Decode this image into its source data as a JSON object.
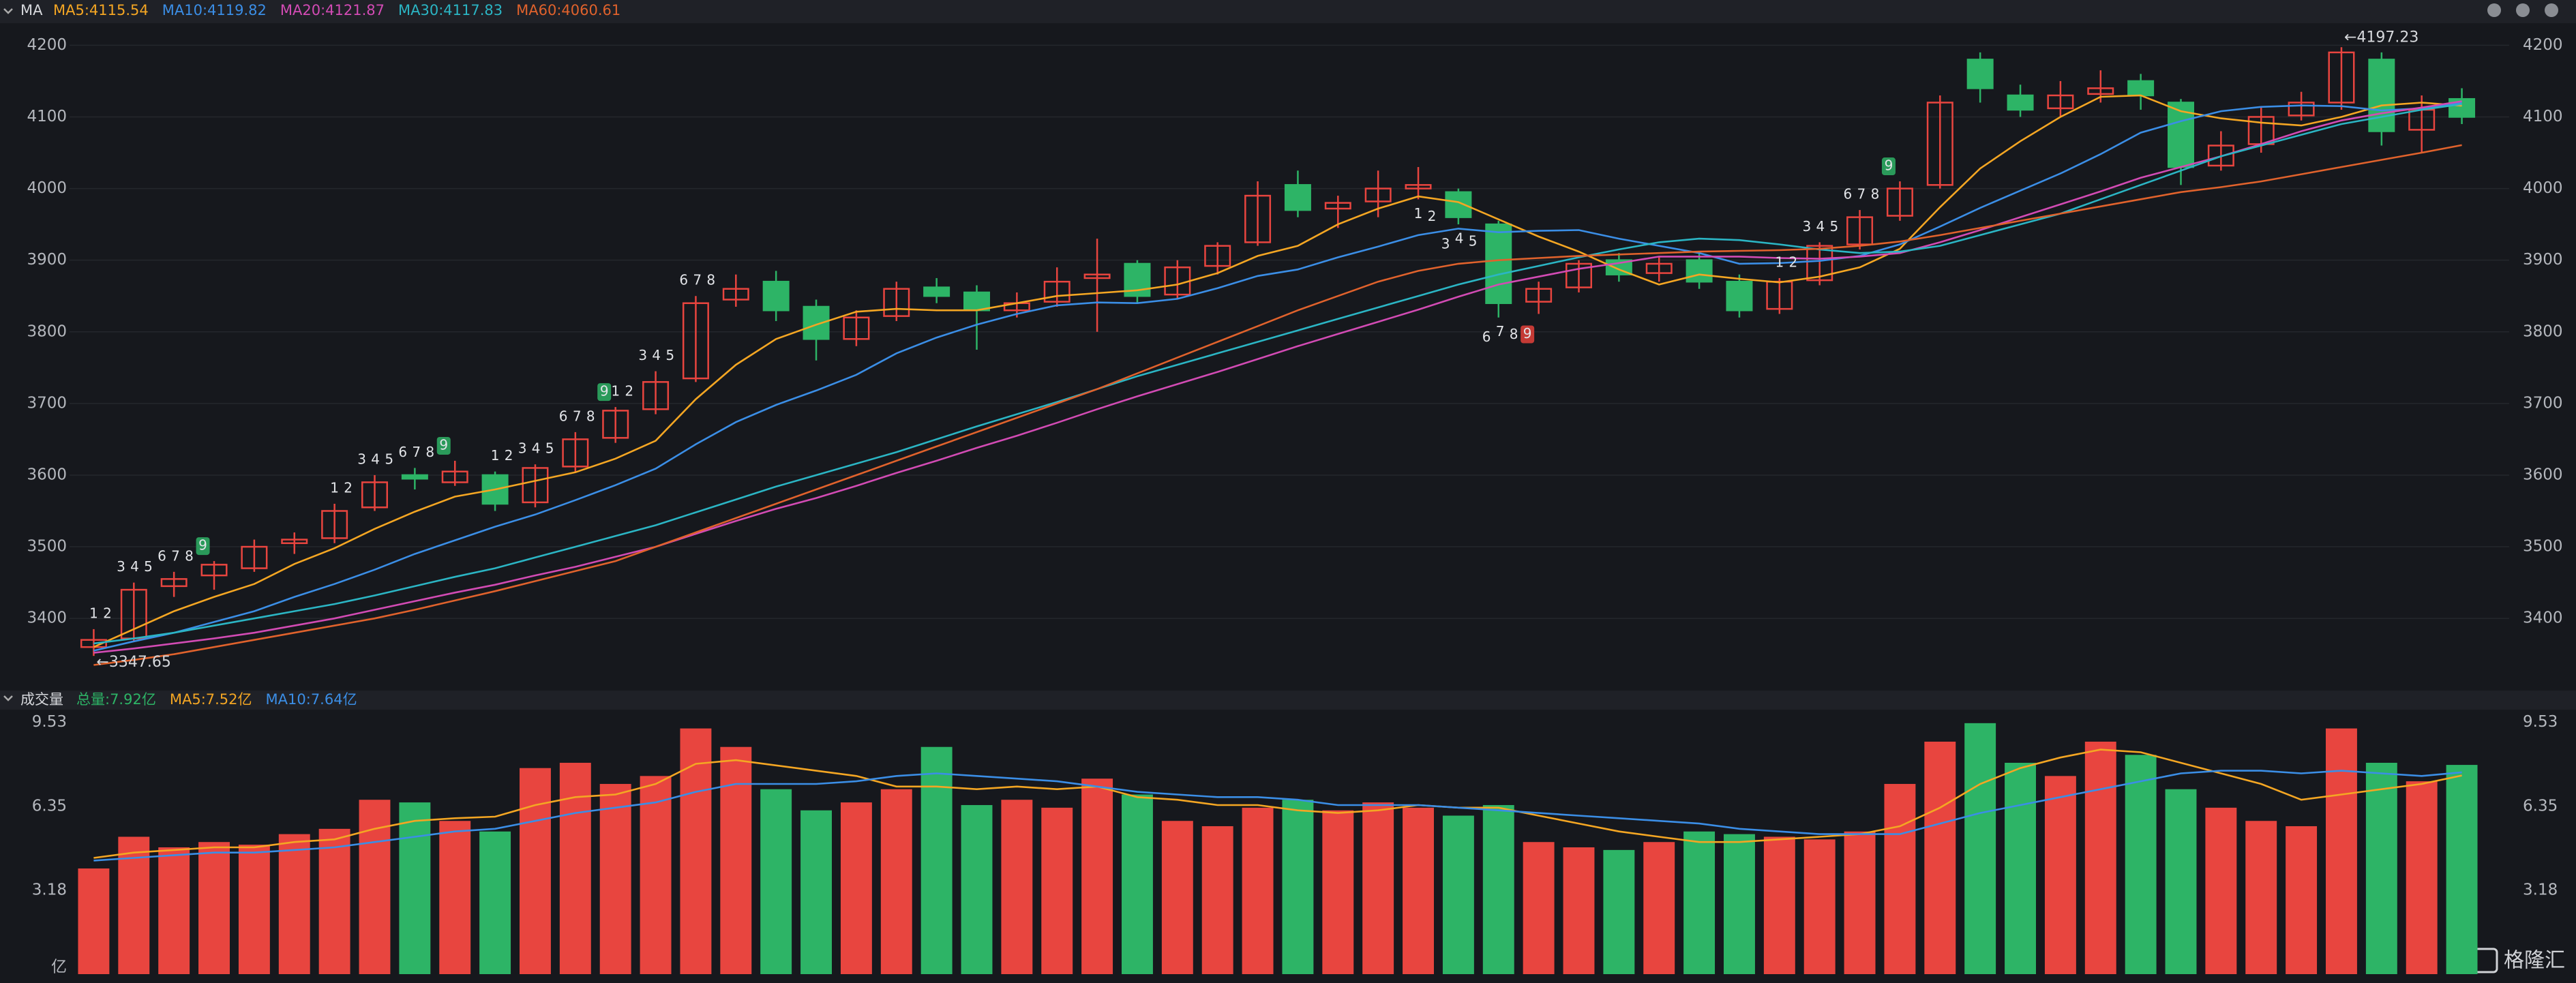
{
  "chart_data": [
    {
      "type": "candlestick",
      "title": "MA",
      "up_color": "#e8453f",
      "down_color": "#2db466",
      "open": [
        3360,
        3372,
        3445,
        3460,
        3470,
        3505,
        3512,
        3555,
        3600,
        3590,
        3600,
        3562,
        3612,
        3652,
        3692,
        3735,
        3845,
        3870,
        3835,
        3790,
        3822,
        3862,
        3855,
        3830,
        3842,
        3875,
        3895,
        3852,
        3892,
        3925,
        4005,
        3972,
        3982,
        4000,
        3995,
        3950,
        3842,
        3862,
        3900,
        3882,
        3900,
        3870,
        3832,
        3872,
        3922,
        3962,
        4005,
        4180,
        4130,
        4112,
        4132,
        4150,
        4120,
        4032,
        4062,
        4102,
        4120,
        4180,
        4082,
        4125
      ],
      "high": [
        3385,
        3450,
        3465,
        3480,
        3510,
        3520,
        3560,
        3600,
        3610,
        3620,
        3605,
        3615,
        3660,
        3695,
        3745,
        3850,
        3880,
        3885,
        3845,
        3830,
        3870,
        3875,
        3865,
        3855,
        3890,
        3930,
        3900,
        3900,
        3925,
        4010,
        4025,
        3990,
        4025,
        4030,
        4000,
        3955,
        3870,
        3900,
        3910,
        3905,
        3910,
        3880,
        3875,
        3925,
        3970,
        4010,
        4130,
        4190,
        4145,
        4150,
        4165,
        4160,
        4125,
        4080,
        4115,
        4135,
        4197.23,
        4190,
        4130,
        4140
      ],
      "low": [
        3347.65,
        3368,
        3430,
        3440,
        3465,
        3490,
        3505,
        3550,
        3580,
        3585,
        3550,
        3555,
        3605,
        3645,
        3685,
        3730,
        3835,
        3815,
        3760,
        3780,
        3815,
        3840,
        3775,
        3820,
        3835,
        3800,
        3840,
        3845,
        3880,
        3920,
        3960,
        3945,
        3960,
        3985,
        3950,
        3820,
        3825,
        3855,
        3870,
        3870,
        3860,
        3820,
        3825,
        3865,
        3915,
        3955,
        4000,
        4120,
        4100,
        4100,
        4120,
        4110,
        4005,
        4025,
        4050,
        4095,
        4110,
        4060,
        4050,
        4090
      ],
      "close": [
        3370,
        3440,
        3455,
        3475,
        3500,
        3510,
        3550,
        3590,
        3595,
        3605,
        3560,
        3610,
        3650,
        3690,
        3730,
        3840,
        3860,
        3830,
        3790,
        3820,
        3860,
        3850,
        3830,
        3840,
        3870,
        3880,
        3850,
        3890,
        3920,
        3990,
        3970,
        3980,
        4000,
        4005,
        3960,
        3840,
        3860,
        3895,
        3880,
        3895,
        3870,
        3830,
        3870,
        3920,
        3960,
        4000,
        4120,
        4140,
        4110,
        4130,
        4140,
        4130,
        4030,
        4060,
        4100,
        4120,
        4190,
        4080,
        4110,
        4100
      ],
      "lines": [
        {
          "name": "MA5:4115.54",
          "color": "#f4a623",
          "values": [
            3360,
            3385,
            3410,
            3430,
            3448,
            3476,
            3498,
            3525,
            3549,
            3570,
            3580,
            3592,
            3604,
            3623,
            3648,
            3706,
            3754,
            3790,
            3810,
            3828,
            3832,
            3830,
            3830,
            3840,
            3850,
            3854,
            3858,
            3866,
            3882,
            3906,
            3920,
            3950,
            3972,
            3989,
            3981,
            3957,
            3933,
            3912,
            3887,
            3866,
            3880,
            3874,
            3869,
            3877,
            3890,
            3916,
            3974,
            4028,
            4066,
            4100,
            4128,
            4130,
            4108,
            4098,
            4092,
            4088,
            4100,
            4116,
            4120,
            4115.54
          ]
        },
        {
          "name": "MA10:4119.82",
          "color": "#3b8ee6",
          "values": [
            3355,
            3368,
            3380,
            3395,
            3410,
            3430,
            3448,
            3468,
            3490,
            3509,
            3528,
            3545,
            3565,
            3586,
            3609,
            3643,
            3674,
            3698,
            3718,
            3740,
            3770,
            3792,
            3810,
            3825,
            3837,
            3841,
            3840,
            3846,
            3861,
            3878,
            3887,
            3904,
            3919,
            3935,
            3944,
            3939,
            3941,
            3942,
            3930,
            3920,
            3910,
            3895,
            3896,
            3899,
            3906,
            3922,
            3947,
            3973,
            3997,
            4021,
            4048,
            4078,
            4094,
            4108,
            4114,
            4116,
            4115,
            4109,
            4112,
            4119.82
          ]
        },
        {
          "name": "MA20:4121.87",
          "color": "#d24bb4",
          "values": [
            3352,
            3358,
            3365,
            3372,
            3380,
            3390,
            3400,
            3412,
            3424,
            3436,
            3447,
            3460,
            3472,
            3486,
            3500,
            3518,
            3536,
            3553,
            3568,
            3585,
            3603,
            3620,
            3638,
            3655,
            3673,
            3692,
            3710,
            3727,
            3744,
            3762,
            3780,
            3797,
            3814,
            3831,
            3849,
            3866,
            3877,
            3888,
            3896,
            3905,
            3905,
            3905,
            3903,
            3902,
            3905,
            3910,
            3925,
            3942,
            3960,
            3978,
            3996,
            4015,
            4030,
            4045,
            4062,
            4080,
            4095,
            4105,
            4113,
            4121.87
          ]
        },
        {
          "name": "MA30:4117.83",
          "color": "#2bb5c4",
          "values": [
            3365,
            3372,
            3380,
            3390,
            3400,
            3410,
            3420,
            3432,
            3445,
            3458,
            3470,
            3485,
            3500,
            3515,
            3530,
            3548,
            3566,
            3584,
            3600,
            3616,
            3632,
            3650,
            3668,
            3685,
            3702,
            3720,
            3738,
            3754,
            3770,
            3786,
            3802,
            3818,
            3834,
            3850,
            3866,
            3880,
            3892,
            3904,
            3915,
            3925,
            3930,
            3928,
            3922,
            3915,
            3910,
            3912,
            3920,
            3935,
            3950,
            3965,
            3985,
            4005,
            4025,
            4045,
            4060,
            4075,
            4090,
            4100,
            4110,
            4117.83
          ]
        },
        {
          "name": "MA60:4060.61",
          "color": "#e0622c",
          "values": [
            3335,
            3342,
            3350,
            3360,
            3370,
            3380,
            3390,
            3400,
            3412,
            3425,
            3438,
            3452,
            3466,
            3480,
            3500,
            3520,
            3540,
            3560,
            3580,
            3600,
            3620,
            3640,
            3660,
            3680,
            3700,
            3720,
            3742,
            3764,
            3786,
            3808,
            3830,
            3850,
            3870,
            3885,
            3895,
            3900,
            3903,
            3906,
            3908,
            3910,
            3912,
            3913,
            3914,
            3916,
            3920,
            3926,
            3935,
            3945,
            3955,
            3965,
            3975,
            3985,
            3995,
            4002,
            4010,
            4020,
            4030,
            4040,
            4050,
            4060.61
          ]
        }
      ],
      "ylim": [
        3305,
        4227
      ],
      "yticks": [
        3400,
        3500,
        3600,
        3700,
        3800,
        3900,
        4000,
        4100,
        4200
      ],
      "grid": true,
      "extremes": [
        {
          "text": "←3347.65",
          "index": 0,
          "at": "low"
        },
        {
          "text": "←4197.23",
          "index": 56,
          "at": "high"
        }
      ],
      "td_sequences": [
        {
          "start": 0,
          "side": "above",
          "labels": [
            "1",
            "2",
            "3",
            "4",
            "5",
            "6",
            "7",
            "8",
            "9"
          ]
        },
        {
          "start": 6,
          "side": "above",
          "labels": [
            "1",
            "2",
            "3",
            "4",
            "5",
            "6",
            "7",
            "8",
            "9"
          ]
        },
        {
          "start": 10,
          "side": "above",
          "labels": [
            "1",
            "2",
            "3",
            "4",
            "5",
            "6",
            "7",
            "8",
            "9"
          ]
        },
        {
          "start": 13,
          "side": "above",
          "labels": [
            "1",
            "2",
            "3",
            "4",
            "5",
            "6",
            "7",
            "8"
          ]
        },
        {
          "start": 33,
          "side": "below",
          "labels": [
            "1",
            "2",
            "3",
            "4",
            "5",
            "6",
            "7",
            "8",
            "9"
          ]
        },
        {
          "start": 42,
          "side": "above",
          "labels": [
            "1",
            "2",
            "3",
            "4",
            "5",
            "6",
            "7",
            "8",
            "9"
          ]
        }
      ]
    },
    {
      "type": "bar",
      "title": "成交量",
      "total_label": "总量:7.92亿",
      "total_color": "#2db466",
      "values": [
        4.0,
        5.2,
        4.8,
        5.0,
        4.9,
        5.3,
        5.5,
        6.6,
        6.5,
        5.8,
        5.4,
        7.8,
        8.0,
        7.2,
        7.5,
        9.3,
        8.6,
        7.0,
        6.2,
        6.5,
        7.0,
        8.6,
        6.4,
        6.6,
        6.3,
        7.4,
        6.8,
        5.8,
        5.6,
        6.3,
        6.6,
        6.2,
        6.5,
        6.3,
        6.0,
        6.4,
        5.0,
        4.8,
        4.7,
        5.0,
        5.4,
        5.3,
        5.2,
        5.1,
        5.4,
        7.2,
        8.8,
        9.5,
        8.0,
        7.5,
        8.8,
        8.3,
        7.0,
        6.3,
        5.8,
        5.6,
        9.3,
        8.0,
        7.3,
        7.92
      ],
      "lines": [
        {
          "name": "MA5:7.52亿",
          "color": "#f4a623",
          "values": [
            4.4,
            4.6,
            4.7,
            4.8,
            4.8,
            5.0,
            5.1,
            5.5,
            5.8,
            5.9,
            5.96,
            6.4,
            6.7,
            6.8,
            7.2,
            7.96,
            8.1,
            7.9,
            7.7,
            7.5,
            7.1,
            7.1,
            7.0,
            7.1,
            7.0,
            7.1,
            6.7,
            6.6,
            6.4,
            6.4,
            6.2,
            6.1,
            6.2,
            6.4,
            6.3,
            6.3,
            6.0,
            5.7,
            5.4,
            5.2,
            5.0,
            5.0,
            5.1,
            5.2,
            5.3,
            5.6,
            6.3,
            7.2,
            7.8,
            8.2,
            8.5,
            8.4,
            8.0,
            7.6,
            7.2,
            6.6,
            6.8,
            7.0,
            7.2,
            7.52
          ]
        },
        {
          "name": "MA10:7.64亿",
          "color": "#3b8ee6",
          "values": [
            4.3,
            4.4,
            4.5,
            4.6,
            4.6,
            4.7,
            4.8,
            5.0,
            5.2,
            5.4,
            5.5,
            5.8,
            6.1,
            6.3,
            6.5,
            6.9,
            7.2,
            7.2,
            7.2,
            7.3,
            7.5,
            7.6,
            7.5,
            7.4,
            7.3,
            7.1,
            6.9,
            6.8,
            6.7,
            6.7,
            6.6,
            6.4,
            6.4,
            6.4,
            6.3,
            6.2,
            6.1,
            6.0,
            5.9,
            5.8,
            5.7,
            5.5,
            5.4,
            5.3,
            5.3,
            5.3,
            5.7,
            6.1,
            6.4,
            6.7,
            7.0,
            7.3,
            7.6,
            7.7,
            7.7,
            7.6,
            7.7,
            7.6,
            7.5,
            7.64
          ]
        }
      ],
      "ylim": [
        0,
        9.96
      ],
      "yticks": [
        {
          "value": 0,
          "label": "亿"
        },
        3.18,
        6.35,
        9.53
      ],
      "grid": false
    }
  ],
  "watermark": "格隆汇"
}
